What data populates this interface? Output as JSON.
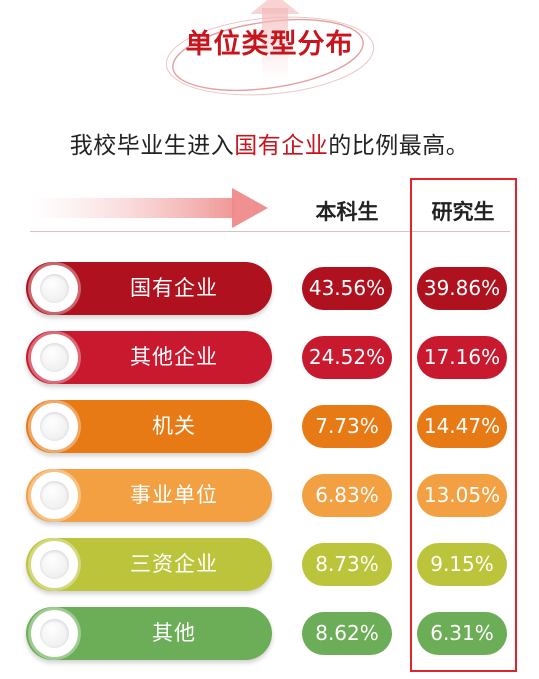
{
  "title": "单位类型分布",
  "subtitle_parts": [
    "我校毕业生进入",
    "国有企业",
    "的比例最高。"
  ],
  "columns": [
    "本科生",
    "研究生"
  ],
  "colors": {
    "accent": "#c8141c",
    "highlight_box": "#e0242c",
    "rows": [
      "#b0111e",
      "#c8192f",
      "#e87a16",
      "#f2a042",
      "#bbc43a",
      "#6cae57"
    ]
  },
  "chart_data": {
    "type": "table",
    "categories": [
      "国有企业",
      "其他企业",
      "机关",
      "事业单位",
      "三资企业",
      "其他"
    ],
    "series": [
      {
        "name": "本科生",
        "values": [
          43.56,
          24.52,
          7.73,
          6.83,
          8.73,
          8.62
        ]
      },
      {
        "name": "研究生",
        "values": [
          39.86,
          17.16,
          14.47,
          13.05,
          9.15,
          6.31
        ]
      }
    ],
    "labels": {
      "本科生": [
        "43.56%",
        "24.52%",
        "7.73%",
        "6.83%",
        "8.73%",
        "8.62%"
      ],
      "研究生": [
        "39.86%",
        "17.16%",
        "14.47%",
        "13.05%",
        "9.15%",
        "6.31%"
      ]
    },
    "unit": "%",
    "highlighted_column": "研究生"
  }
}
